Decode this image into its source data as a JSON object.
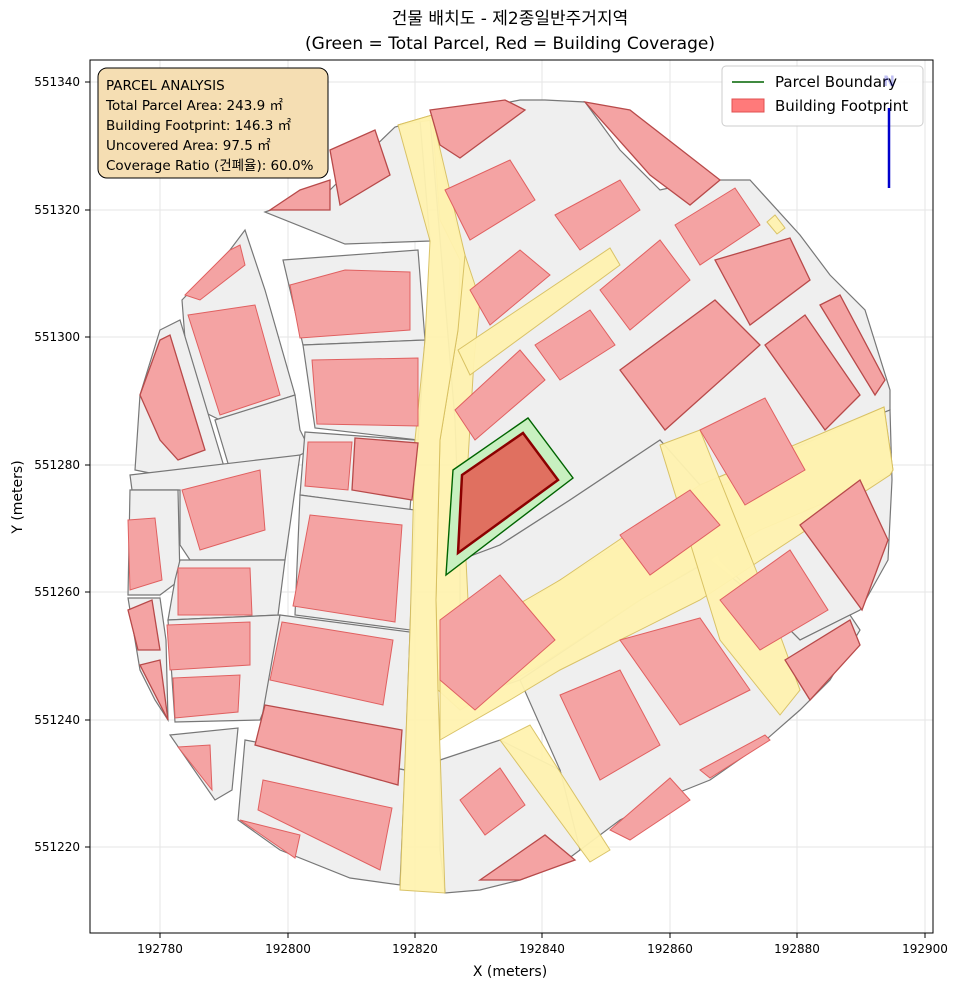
{
  "title": {
    "line1": "건물 배치도 - 제2종일반주거지역",
    "line2": "(Green = Total Parcel, Red = Building Coverage)"
  },
  "axes": {
    "xlabel": "X (meters)",
    "ylabel": "Y (meters)",
    "xticks": [
      "192780",
      "192800",
      "192820",
      "192840",
      "192860",
      "192880",
      "192900"
    ],
    "yticks": [
      "551340",
      "551320",
      "551300",
      "551280",
      "551260",
      "551240",
      "551220"
    ]
  },
  "info_box": {
    "heading": "PARCEL ANALYSIS",
    "total_area": "Total Parcel Area: 243.9 ㎡",
    "footprint": "Building Footprint: 146.3 ㎡",
    "uncovered": "Uncovered Area: 97.5 ㎡",
    "coverage": "Coverage Ratio (건폐율): 60.0%"
  },
  "legend": {
    "parcel_boundary": "Parcel Boundary",
    "building_footprint": "Building Footprint"
  },
  "north_arrow": {
    "label": "N"
  },
  "colors": {
    "parcel_boundary": "#006400",
    "parcel_fill": "#c8f0c0",
    "target_building_fill": "#e07060",
    "target_building_stroke": "#8b0000",
    "building_fill": "#f4a3a3",
    "road_fill": "#fff3b0",
    "info_box_bg": "#f5deb3",
    "north_arrow": "#0000cc"
  },
  "chart_data": {
    "type": "map",
    "xlim": [
      192768,
      192902
    ],
    "ylim": [
      551206,
      551343
    ],
    "target_parcel": {
      "boundary": [
        [
          192826,
          551279
        ],
        [
          192837,
          551287
        ],
        [
          192844,
          551278
        ],
        [
          192826,
          551263
        ]
      ],
      "building": [
        [
          192827,
          551278
        ],
        [
          192837,
          551285
        ],
        [
          192842,
          551278
        ],
        [
          192826,
          551266
        ]
      ]
    }
  }
}
